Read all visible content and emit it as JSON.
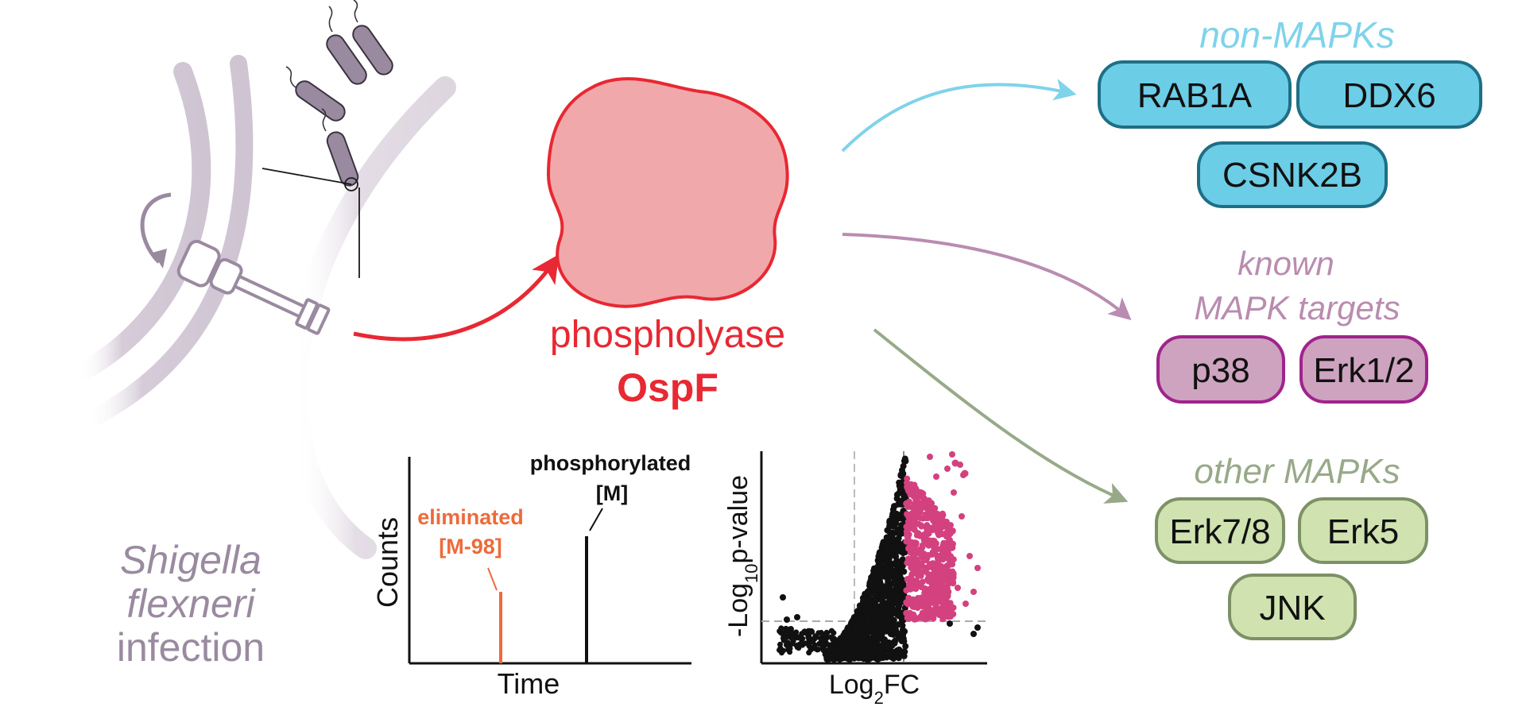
{
  "infection": {
    "label_line1": "Shigella",
    "label_line2": "flexneri",
    "label_line3": "infection"
  },
  "enzyme": {
    "class_label": "phospholyase",
    "name": "OspF"
  },
  "groups": {
    "non_mapks": {
      "title": "non-MAPKs",
      "proteins": [
        "RAB1A",
        "DDX6",
        "CSNK2B"
      ]
    },
    "known_targets": {
      "title_line1": "known",
      "title_line2": "MAPK targets",
      "proteins": [
        "p38",
        "Erk1/2"
      ]
    },
    "other_mapks": {
      "title": "other MAPKs",
      "proteins": [
        "Erk7/8",
        "Erk5",
        "JNK"
      ]
    }
  },
  "spectrum_plot": {
    "ylabel": "Counts",
    "xlabel": "Time",
    "peak_eliminated_line1": "eliminated",
    "peak_eliminated_line2": "[M-98]",
    "peak_phos_line1": "phosphorylated",
    "peak_phos_line2": "[M]"
  },
  "volcano_plot": {
    "ylabel_prefix": "-Log",
    "ylabel_sub": "10",
    "ylabel_suffix": "p-value",
    "xlabel_prefix": "Log",
    "xlabel_sub": "2",
    "xlabel_suffix": "FC"
  },
  "colors": {
    "bacteria": "#9a8aa0",
    "membrane": "#d9d1dc",
    "enzyme_fill": "#f0a8ab",
    "enzyme_stroke": "#e82832",
    "red": "#e82832",
    "blue_fill": "#6ccde6",
    "blue_stroke": "#1e6f86",
    "blue_text": "#7fd3ea",
    "purple_fill": "#cda3bf",
    "purple_stroke": "#a0238c",
    "purple_text": "#b98cb0",
    "green_fill": "#cfe2b0",
    "green_stroke": "#7d9166",
    "green_text": "#98a989",
    "orange": "#ee6a3a",
    "magenta": "#d3417f"
  }
}
